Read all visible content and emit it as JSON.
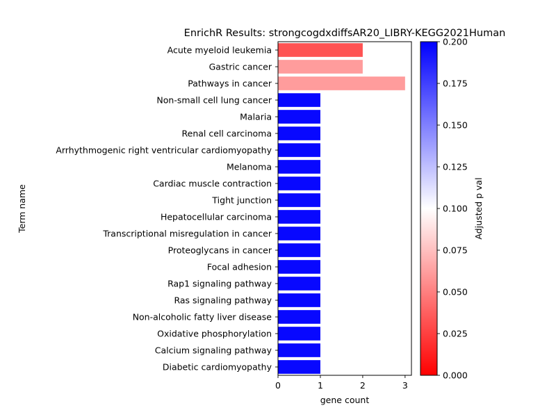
{
  "chart_data": {
    "type": "bar",
    "orientation": "horizontal",
    "title": "EnrichR Results: strongcogdxdiffsAR20_LIBRY-KEGG2021Human",
    "xlabel": "gene count",
    "ylabel": "Term name",
    "xlim": [
      0,
      3.15
    ],
    "xticks": [
      "0",
      "1",
      "2",
      "3"
    ],
    "categories": [
      "Acute myeloid leukemia",
      "Gastric cancer",
      "Pathways in cancer",
      "Non-small cell lung cancer",
      "Malaria",
      "Renal cell carcinoma",
      "Arrhythmogenic right ventricular cardiomyopathy",
      "Melanoma",
      "Cardiac muscle contraction",
      "Tight junction",
      "Hepatocellular carcinoma",
      "Transcriptional misregulation in cancer",
      "Proteoglycans in cancer",
      "Focal adhesion",
      "Rap1 signaling pathway",
      "Ras signaling pathway",
      "Non-alcoholic fatty liver disease",
      "Oxidative phosphorylation",
      "Calcium signaling pathway",
      "Diabetic cardiomyopathy"
    ],
    "values": [
      2,
      2,
      3,
      1,
      1,
      1,
      1,
      1,
      1,
      1,
      1,
      1,
      1,
      1,
      1,
      1,
      1,
      1,
      1,
      1
    ],
    "adjusted_p": [
      0.03,
      0.06,
      0.06,
      0.2,
      0.2,
      0.2,
      0.2,
      0.2,
      0.2,
      0.2,
      0.2,
      0.2,
      0.2,
      0.2,
      0.2,
      0.2,
      0.2,
      0.2,
      0.2,
      0.2
    ],
    "colorbar": {
      "label": "Adjusted p val",
      "range": [
        0,
        0.2
      ],
      "ticks": [
        "0.000",
        "0.025",
        "0.050",
        "0.075",
        "0.100",
        "0.125",
        "0.150",
        "0.175",
        "0.200"
      ],
      "colormap": "bwr_r",
      "colors": [
        "#ff0000",
        "#ffffff",
        "#0000ff"
      ]
    }
  }
}
